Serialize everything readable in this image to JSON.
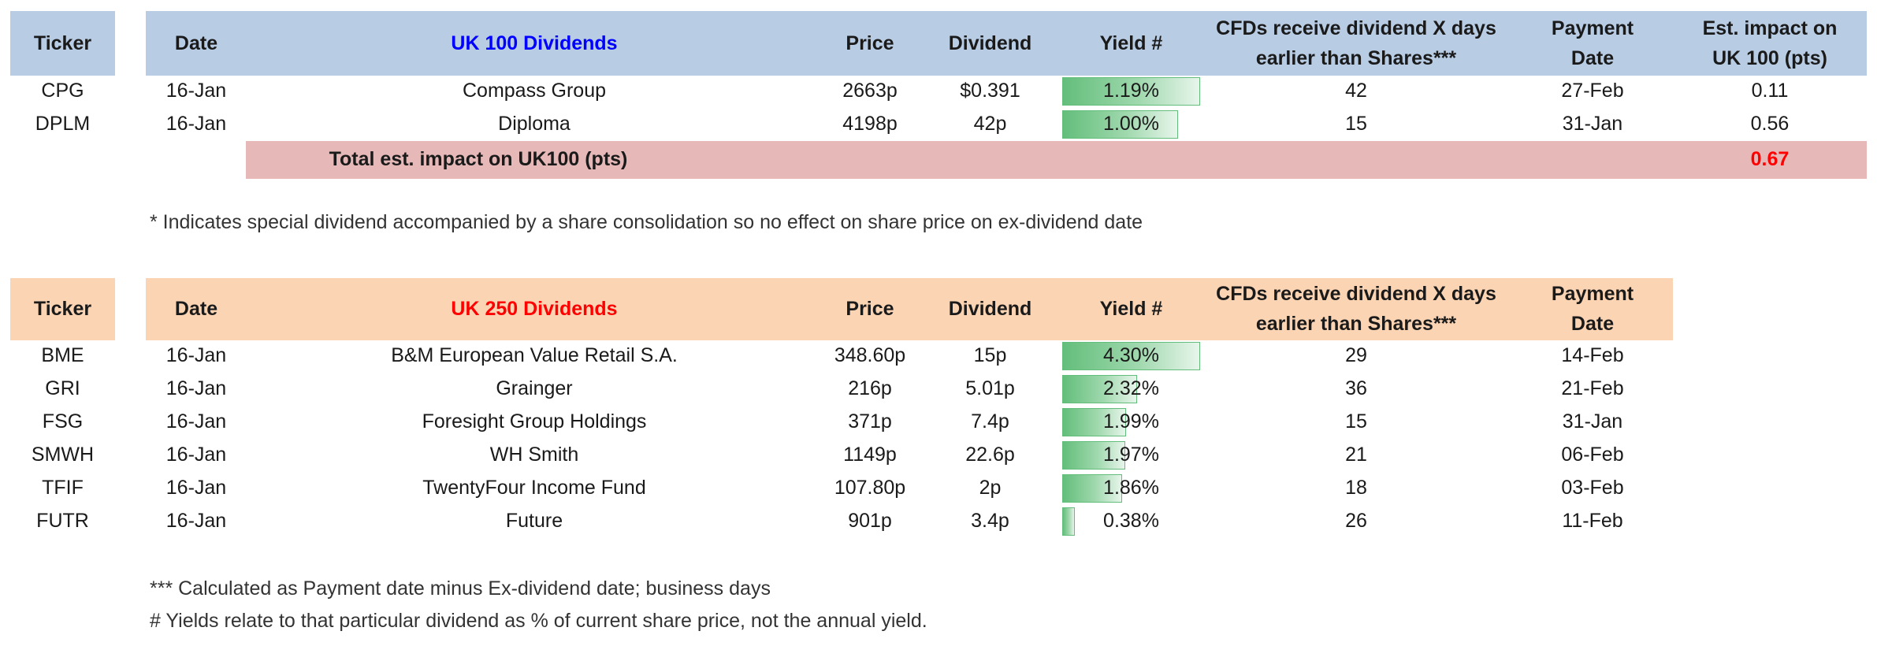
{
  "uk100": {
    "headers": {
      "ticker": "Ticker",
      "date": "Date",
      "title": "UK 100 Dividends",
      "price": "Price",
      "dividend": "Dividend",
      "yield": "Yield #",
      "cfd_line1": "CFDs receive dividend X days",
      "cfd_line2": "earlier than Shares***",
      "payment_line1": "Payment",
      "payment_line2": "Date",
      "impact_line1": "Est. impact on",
      "impact_line2": "UK 100 (pts)"
    },
    "rows": [
      {
        "ticker": "CPG",
        "date": "16-Jan",
        "name": "Compass Group",
        "price": "2663p",
        "dividend": "$0.391",
        "yield": "1.19%",
        "yield_value": 1.19,
        "cfd_days": "42",
        "payment": "27-Feb",
        "impact": "0.11"
      },
      {
        "ticker": "DPLM",
        "date": "16-Jan",
        "name": "Diploma",
        "price": "4198p",
        "dividend": "42p",
        "yield": "1.00%",
        "yield_value": 1.0,
        "cfd_days": "15",
        "payment": "31-Jan",
        "impact": "0.56"
      }
    ],
    "total_label": "Total est. impact on UK100 (pts)",
    "total_value": "0.67"
  },
  "note_special": "* Indicates special dividend accompanied by a share consolidation so no effect on share price on ex-dividend date",
  "uk250": {
    "headers": {
      "ticker": "Ticker",
      "date": "Date",
      "title": "UK 250 Dividends",
      "price": "Price",
      "dividend": "Dividend",
      "yield": "Yield #",
      "cfd_line1": "CFDs receive dividend X days",
      "cfd_line2": "earlier than Shares***",
      "payment_line1": "Payment",
      "payment_line2": "Date"
    },
    "rows": [
      {
        "ticker": "BME",
        "date": "16-Jan",
        "name": "B&M European Value Retail S.A.",
        "price": "348.60p",
        "dividend": "15p",
        "yield": "4.30%",
        "yield_value": 4.3,
        "cfd_days": "29",
        "payment": "14-Feb"
      },
      {
        "ticker": "GRI",
        "date": "16-Jan",
        "name": "Grainger",
        "price": "216p",
        "dividend": "5.01p",
        "yield": "2.32%",
        "yield_value": 2.32,
        "cfd_days": "36",
        "payment": "21-Feb"
      },
      {
        "ticker": "FSG",
        "date": "16-Jan",
        "name": "Foresight Group Holdings",
        "price": "371p",
        "dividend": "7.4p",
        "yield": "1.99%",
        "yield_value": 1.99,
        "cfd_days": "15",
        "payment": "31-Jan"
      },
      {
        "ticker": "SMWH",
        "date": "16-Jan",
        "name": "WH Smith",
        "price": "1149p",
        "dividend": "22.6p",
        "yield": "1.97%",
        "yield_value": 1.97,
        "cfd_days": "21",
        "payment": "06-Feb"
      },
      {
        "ticker": "TFIF",
        "date": "16-Jan",
        "name": "TwentyFour Income Fund",
        "price": "107.80p",
        "dividend": "2p",
        "yield": "1.86%",
        "yield_value": 1.86,
        "cfd_days": "18",
        "payment": "03-Feb"
      },
      {
        "ticker": "FUTR",
        "date": "16-Jan",
        "name": "Future",
        "price": "901p",
        "dividend": "3.4p",
        "yield": "0.38%",
        "yield_value": 0.38,
        "cfd_days": "26",
        "payment": "11-Feb"
      }
    ]
  },
  "note_calc": "*** Calculated as Payment date minus Ex-dividend date; business days",
  "note_yield": "# Yields relate to that particular dividend as % of current share price, not the annual yield.",
  "colors": {
    "uk100_header": "#b8cce4",
    "uk250_header": "#fbd4b4",
    "total_row": "#e6b9b8",
    "databar": "#63be7b",
    "title_blue": "#0000ff",
    "title_red": "#ff0000"
  }
}
